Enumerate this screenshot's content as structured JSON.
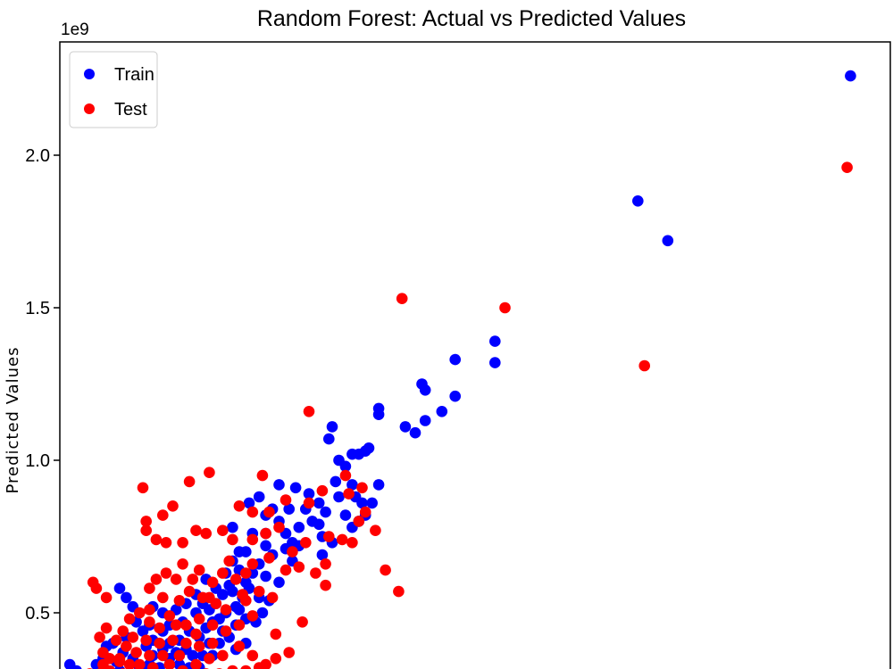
{
  "chart_data": {
    "type": "scatter",
    "title": "Random Forest: Actual vs Predicted Values",
    "xlabel": "",
    "ylabel": "Predicted Values",
    "y_offset_label": "1e9",
    "y_scale_multiplier": 1000000000,
    "ylim": [
      0,
      2.28
    ],
    "xlim": [
      0,
      2.5
    ],
    "yticks": [
      0.5,
      1.0,
      1.5,
      2.0
    ],
    "ytick_labels": [
      "0.5",
      "1.0",
      "1.5",
      "2.0"
    ],
    "grid": false,
    "legend_position": "top-left",
    "series": [
      {
        "name": "Train",
        "color": "#0000ff",
        "points": [
          [
            2.38,
            2.26
          ],
          [
            1.74,
            1.85
          ],
          [
            1.83,
            1.72
          ],
          [
            1.31,
            1.39
          ],
          [
            1.31,
            1.32
          ],
          [
            1.19,
            1.33
          ],
          [
            1.19,
            1.21
          ],
          [
            1.09,
            1.25
          ],
          [
            1.1,
            1.23
          ],
          [
            1.15,
            1.16
          ],
          [
            1.1,
            1.13
          ],
          [
            1.07,
            1.09
          ],
          [
            1.04,
            1.11
          ],
          [
            0.96,
            1.17
          ],
          [
            0.96,
            1.15
          ],
          [
            0.93,
            1.04
          ],
          [
            0.9,
            1.02
          ],
          [
            0.92,
            1.03
          ],
          [
            0.88,
            1.02
          ],
          [
            0.86,
            0.98
          ],
          [
            0.84,
            1.0
          ],
          [
            0.81,
            1.07
          ],
          [
            0.82,
            1.11
          ],
          [
            0.83,
            0.93
          ],
          [
            0.88,
            0.92
          ],
          [
            0.89,
            0.88
          ],
          [
            0.91,
            0.86
          ],
          [
            0.94,
            0.86
          ],
          [
            0.96,
            0.92
          ],
          [
            0.86,
            0.82
          ],
          [
            0.9,
            0.8
          ],
          [
            0.88,
            0.78
          ],
          [
            0.92,
            0.82
          ],
          [
            0.8,
            0.83
          ],
          [
            0.78,
            0.86
          ],
          [
            0.75,
            0.89
          ],
          [
            0.71,
            0.91
          ],
          [
            0.69,
            0.84
          ],
          [
            0.66,
            0.92
          ],
          [
            0.64,
            0.84
          ],
          [
            0.62,
            0.82
          ],
          [
            0.62,
            0.76
          ],
          [
            0.68,
            0.76
          ],
          [
            0.7,
            0.73
          ],
          [
            0.72,
            0.72
          ],
          [
            0.72,
            0.78
          ],
          [
            0.76,
            0.8
          ],
          [
            0.78,
            0.79
          ],
          [
            0.79,
            0.75
          ],
          [
            0.82,
            0.73
          ],
          [
            0.79,
            0.69
          ],
          [
            0.7,
            0.67
          ],
          [
            0.68,
            0.71
          ],
          [
            0.64,
            0.69
          ],
          [
            0.62,
            0.72
          ],
          [
            0.58,
            0.76
          ],
          [
            0.56,
            0.7
          ],
          [
            0.54,
            0.7
          ],
          [
            0.6,
            0.66
          ],
          [
            0.62,
            0.62
          ],
          [
            0.58,
            0.63
          ],
          [
            0.54,
            0.64
          ],
          [
            0.56,
            0.6
          ],
          [
            0.52,
            0.67
          ],
          [
            0.5,
            0.63
          ],
          [
            0.49,
            0.56
          ],
          [
            0.52,
            0.57
          ],
          [
            0.55,
            0.55
          ],
          [
            0.57,
            0.58
          ],
          [
            0.6,
            0.55
          ],
          [
            0.63,
            0.54
          ],
          [
            0.66,
            0.6
          ],
          [
            0.61,
            0.5
          ],
          [
            0.59,
            0.47
          ],
          [
            0.56,
            0.48
          ],
          [
            0.53,
            0.46
          ],
          [
            0.54,
            0.51
          ],
          [
            0.5,
            0.5
          ],
          [
            0.48,
            0.48
          ],
          [
            0.47,
            0.53
          ],
          [
            0.45,
            0.51
          ],
          [
            0.43,
            0.53
          ],
          [
            0.41,
            0.56
          ],
          [
            0.41,
            0.5
          ],
          [
            0.44,
            0.45
          ],
          [
            0.46,
            0.47
          ],
          [
            0.49,
            0.44
          ],
          [
            0.51,
            0.42
          ],
          [
            0.48,
            0.4
          ],
          [
            0.45,
            0.4
          ],
          [
            0.42,
            0.42
          ],
          [
            0.39,
            0.44
          ],
          [
            0.37,
            0.47
          ],
          [
            0.36,
            0.41
          ],
          [
            0.38,
            0.38
          ],
          [
            0.4,
            0.36
          ],
          [
            0.43,
            0.36
          ],
          [
            0.46,
            0.36
          ],
          [
            0.42,
            0.32
          ],
          [
            0.39,
            0.32
          ],
          [
            0.36,
            0.33
          ],
          [
            0.33,
            0.35
          ],
          [
            0.31,
            0.38
          ],
          [
            0.3,
            0.32
          ],
          [
            0.28,
            0.36
          ],
          [
            0.27,
            0.33
          ],
          [
            0.25,
            0.31
          ],
          [
            0.31,
            0.28
          ],
          [
            0.34,
            0.29
          ],
          [
            0.29,
            0.28
          ],
          [
            0.26,
            0.28
          ],
          [
            0.23,
            0.27
          ],
          [
            0.21,
            0.29
          ],
          [
            0.18,
            0.31
          ],
          [
            0.16,
            0.29
          ],
          [
            0.19,
            0.27
          ],
          [
            0.14,
            0.27
          ],
          [
            0.24,
            0.32
          ],
          [
            0.22,
            0.35
          ],
          [
            0.19,
            0.37
          ],
          [
            0.16,
            0.4
          ],
          [
            0.14,
            0.39
          ],
          [
            0.26,
            0.39
          ],
          [
            0.28,
            0.41
          ],
          [
            0.31,
            0.44
          ],
          [
            0.33,
            0.46
          ],
          [
            0.31,
            0.5
          ],
          [
            0.28,
            0.52
          ],
          [
            0.38,
            0.3
          ],
          [
            0.41,
            0.28
          ],
          [
            0.44,
            0.28
          ],
          [
            0.35,
            0.37
          ],
          [
            0.33,
            0.4
          ],
          [
            0.53,
            0.38
          ],
          [
            0.56,
            0.4
          ],
          [
            0.25,
            0.44
          ],
          [
            0.23,
            0.47
          ],
          [
            0.2,
            0.42
          ],
          [
            0.12,
            0.3
          ],
          [
            0.1,
            0.29
          ],
          [
            0.08,
            0.28
          ],
          [
            0.06,
            0.29
          ],
          [
            0.03,
            0.33
          ],
          [
            0.05,
            0.31
          ],
          [
            0.11,
            0.33
          ],
          [
            0.13,
            0.35
          ],
          [
            0.22,
            0.52
          ],
          [
            0.2,
            0.55
          ],
          [
            0.18,
            0.58
          ],
          [
            0.57,
            0.86
          ],
          [
            0.6,
            0.88
          ],
          [
            0.52,
            0.78
          ],
          [
            0.66,
            0.8
          ],
          [
            0.74,
            0.84
          ],
          [
            0.84,
            0.88
          ],
          [
            0.3,
            0.29
          ],
          [
            0.17,
            0.34
          ],
          [
            0.27,
            0.46
          ],
          [
            0.35,
            0.51
          ],
          [
            0.38,
            0.53
          ],
          [
            0.47,
            0.58
          ],
          [
            0.44,
            0.61
          ],
          [
            0.51,
            0.59
          ],
          [
            0.53,
            0.52
          ]
        ]
      },
      {
        "name": "Test",
        "color": "#ff0000",
        "points": [
          [
            2.37,
            1.96
          ],
          [
            1.76,
            1.31
          ],
          [
            1.34,
            1.5
          ],
          [
            1.03,
            1.53
          ],
          [
            0.75,
            1.16
          ],
          [
            0.86,
            0.95
          ],
          [
            0.91,
            0.91
          ],
          [
            0.87,
            0.89
          ],
          [
            0.79,
            0.9
          ],
          [
            0.75,
            0.86
          ],
          [
            0.68,
            0.87
          ],
          [
            0.63,
            0.83
          ],
          [
            0.58,
            0.83
          ],
          [
            0.54,
            0.85
          ],
          [
            0.45,
            0.96
          ],
          [
            0.39,
            0.93
          ],
          [
            0.34,
            0.85
          ],
          [
            0.31,
            0.82
          ],
          [
            0.26,
            0.8
          ],
          [
            0.26,
            0.77
          ],
          [
            0.29,
            0.74
          ],
          [
            0.32,
            0.73
          ],
          [
            0.37,
            0.73
          ],
          [
            0.41,
            0.77
          ],
          [
            0.44,
            0.76
          ],
          [
            0.49,
            0.77
          ],
          [
            0.52,
            0.74
          ],
          [
            0.58,
            0.74
          ],
          [
            0.62,
            0.76
          ],
          [
            0.66,
            0.78
          ],
          [
            0.7,
            0.7
          ],
          [
            0.74,
            0.73
          ],
          [
            0.81,
            0.75
          ],
          [
            0.85,
            0.74
          ],
          [
            0.88,
            0.73
          ],
          [
            0.9,
            0.8
          ],
          [
            0.95,
            0.77
          ],
          [
            0.8,
            0.66
          ],
          [
            0.77,
            0.63
          ],
          [
            0.8,
            0.59
          ],
          [
            0.72,
            0.65
          ],
          [
            0.68,
            0.64
          ],
          [
            0.63,
            0.68
          ],
          [
            0.58,
            0.66
          ],
          [
            0.56,
            0.63
          ],
          [
            0.51,
            0.67
          ],
          [
            0.49,
            0.63
          ],
          [
            0.46,
            0.6
          ],
          [
            0.42,
            0.64
          ],
          [
            0.4,
            0.61
          ],
          [
            0.37,
            0.66
          ],
          [
            0.35,
            0.61
          ],
          [
            0.32,
            0.63
          ],
          [
            0.29,
            0.61
          ],
          [
            0.27,
            0.58
          ],
          [
            0.31,
            0.55
          ],
          [
            0.36,
            0.54
          ],
          [
            0.39,
            0.57
          ],
          [
            0.43,
            0.55
          ],
          [
            0.47,
            0.53
          ],
          [
            0.5,
            0.51
          ],
          [
            0.56,
            0.54
          ],
          [
            0.6,
            0.57
          ],
          [
            0.64,
            0.55
          ],
          [
            0.58,
            0.49
          ],
          [
            0.54,
            0.46
          ],
          [
            0.5,
            0.44
          ],
          [
            0.46,
            0.46
          ],
          [
            0.42,
            0.48
          ],
          [
            0.38,
            0.46
          ],
          [
            0.33,
            0.49
          ],
          [
            0.3,
            0.45
          ],
          [
            0.27,
            0.47
          ],
          [
            0.24,
            0.5
          ],
          [
            0.21,
            0.48
          ],
          [
            0.19,
            0.44
          ],
          [
            0.22,
            0.42
          ],
          [
            0.26,
            0.41
          ],
          [
            0.3,
            0.4
          ],
          [
            0.34,
            0.41
          ],
          [
            0.38,
            0.4
          ],
          [
            0.42,
            0.39
          ],
          [
            0.46,
            0.4
          ],
          [
            0.36,
            0.36
          ],
          [
            0.31,
            0.36
          ],
          [
            0.27,
            0.36
          ],
          [
            0.23,
            0.37
          ],
          [
            0.2,
            0.39
          ],
          [
            0.17,
            0.41
          ],
          [
            0.14,
            0.45
          ],
          [
            0.12,
            0.42
          ],
          [
            0.11,
            0.58
          ],
          [
            0.1,
            0.6
          ],
          [
            0.14,
            0.55
          ],
          [
            0.13,
            0.37
          ],
          [
            0.15,
            0.35
          ],
          [
            0.18,
            0.34
          ],
          [
            0.21,
            0.33
          ],
          [
            0.24,
            0.33
          ],
          [
            0.28,
            0.32
          ],
          [
            0.33,
            0.33
          ],
          [
            0.37,
            0.31
          ],
          [
            0.41,
            0.33
          ],
          [
            0.45,
            0.35
          ],
          [
            0.49,
            0.36
          ],
          [
            0.54,
            0.39
          ],
          [
            0.58,
            0.36
          ],
          [
            0.6,
            0.32
          ],
          [
            0.56,
            0.31
          ],
          [
            0.52,
            0.31
          ],
          [
            0.48,
            0.3
          ],
          [
            0.44,
            0.3
          ],
          [
            0.4,
            0.29
          ],
          [
            0.36,
            0.28
          ],
          [
            0.32,
            0.29
          ],
          [
            0.28,
            0.28
          ],
          [
            0.24,
            0.28
          ],
          [
            0.2,
            0.28
          ],
          [
            0.16,
            0.28
          ],
          [
            0.12,
            0.3
          ],
          [
            0.09,
            0.3
          ],
          [
            0.07,
            0.28
          ],
          [
            0.05,
            0.29
          ],
          [
            0.11,
            0.28
          ],
          [
            0.15,
            0.31
          ],
          [
            0.19,
            0.3
          ],
          [
            0.23,
            0.3
          ],
          [
            0.62,
            0.33
          ],
          [
            0.65,
            0.35
          ],
          [
            0.69,
            0.37
          ],
          [
            0.73,
            0.47
          ],
          [
            0.65,
            0.43
          ],
          [
            0.92,
            0.83
          ],
          [
            0.98,
            0.64
          ],
          [
            1.02,
            0.57
          ],
          [
            0.53,
            0.61
          ],
          [
            0.25,
            0.91
          ],
          [
            0.61,
            0.95
          ],
          [
            0.55,
            0.56
          ],
          [
            0.35,
            0.46
          ],
          [
            0.41,
            0.43
          ],
          [
            0.18,
            0.35
          ],
          [
            0.13,
            0.33
          ],
          [
            0.45,
            0.55
          ],
          [
            0.27,
            0.51
          ]
        ]
      }
    ]
  }
}
